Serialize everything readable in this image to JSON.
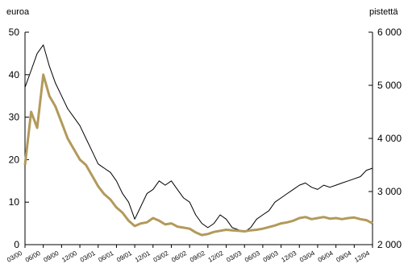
{
  "chart_data": {
    "type": "line",
    "left_axis_unit": "euroa",
    "right_axis_unit": "pistettä",
    "left_ylim": [
      0,
      50
    ],
    "right_ylim": [
      2000,
      6000
    ],
    "left_ticks": [
      0,
      10,
      20,
      30,
      40,
      50
    ],
    "right_ticks": [
      2000,
      3000,
      4000,
      5000,
      6000
    ],
    "right_tick_labels": [
      "2 000",
      "3 000",
      "4 000",
      "5 000",
      "6 000"
    ],
    "x_tick_labels": [
      "03/00",
      "06/00",
      "09/00",
      "12/00",
      "03/01",
      "06/01",
      "09/01",
      "12/01",
      "03/02",
      "06/02",
      "09/02",
      "12/02",
      "03/03",
      "06/03",
      "09/03",
      "12/03",
      "03/04",
      "06/04",
      "09/04",
      "12/04"
    ],
    "x_range": [
      "2000-03",
      "2004-12"
    ],
    "colors": {
      "black_series": "#000000",
      "gold_series": "#b29a5b",
      "axis": "#000000"
    },
    "series": [
      {
        "axis": "left",
        "color": "#000000",
        "unit": "euroa",
        "points": [
          [
            "2000-03",
            37
          ],
          [
            "2000-04",
            41
          ],
          [
            "2000-05",
            45
          ],
          [
            "2000-06",
            47
          ],
          [
            "2000-07",
            42
          ],
          [
            "2000-08",
            38
          ],
          [
            "2000-09",
            35
          ],
          [
            "2000-10",
            32
          ],
          [
            "2000-11",
            30
          ],
          [
            "2000-12",
            28
          ],
          [
            "2001-01",
            25
          ],
          [
            "2001-02",
            22
          ],
          [
            "2001-03",
            19
          ],
          [
            "2001-04",
            18
          ],
          [
            "2001-05",
            17
          ],
          [
            "2001-06",
            15
          ],
          [
            "2001-07",
            12
          ],
          [
            "2001-08",
            10
          ],
          [
            "2001-09",
            6
          ],
          [
            "2001-10",
            9
          ],
          [
            "2001-11",
            12
          ],
          [
            "2001-12",
            13
          ],
          [
            "2002-01",
            15
          ],
          [
            "2002-02",
            14
          ],
          [
            "2002-03",
            15
          ],
          [
            "2002-04",
            13
          ],
          [
            "2002-05",
            11
          ],
          [
            "2002-06",
            10
          ],
          [
            "2002-07",
            7
          ],
          [
            "2002-08",
            5
          ],
          [
            "2002-09",
            4
          ],
          [
            "2002-10",
            5
          ],
          [
            "2002-11",
            7
          ],
          [
            "2002-12",
            6
          ],
          [
            "2003-01",
            4
          ],
          [
            "2003-02",
            3.5
          ],
          [
            "2003-03",
            3
          ],
          [
            "2003-04",
            4
          ],
          [
            "2003-05",
            6
          ],
          [
            "2003-06",
            7
          ],
          [
            "2003-07",
            8
          ],
          [
            "2003-08",
            10
          ],
          [
            "2003-09",
            11
          ],
          [
            "2003-10",
            12
          ],
          [
            "2003-11",
            13
          ],
          [
            "2003-12",
            14
          ],
          [
            "2004-01",
            14.5
          ],
          [
            "2004-02",
            13.5
          ],
          [
            "2004-03",
            13
          ],
          [
            "2004-04",
            14
          ],
          [
            "2004-05",
            13.5
          ],
          [
            "2004-06",
            14
          ],
          [
            "2004-07",
            14.5
          ],
          [
            "2004-08",
            15
          ],
          [
            "2004-09",
            15.5
          ],
          [
            "2004-10",
            16
          ],
          [
            "2004-11",
            17.5
          ],
          [
            "2004-12",
            18
          ]
        ]
      },
      {
        "axis": "right",
        "color": "#b29a5b",
        "unit": "pistettä",
        "points": [
          [
            "2000-03",
            3500
          ],
          [
            "2000-04",
            4500
          ],
          [
            "2000-05",
            4200
          ],
          [
            "2000-06",
            5200
          ],
          [
            "2000-07",
            4800
          ],
          [
            "2000-08",
            4600
          ],
          [
            "2000-09",
            4300
          ],
          [
            "2000-10",
            4000
          ],
          [
            "2000-11",
            3800
          ],
          [
            "2000-12",
            3600
          ],
          [
            "2001-01",
            3500
          ],
          [
            "2001-02",
            3300
          ],
          [
            "2001-03",
            3100
          ],
          [
            "2001-04",
            2950
          ],
          [
            "2001-05",
            2850
          ],
          [
            "2001-06",
            2700
          ],
          [
            "2001-07",
            2600
          ],
          [
            "2001-08",
            2450
          ],
          [
            "2001-09",
            2350
          ],
          [
            "2001-10",
            2400
          ],
          [
            "2001-11",
            2420
          ],
          [
            "2001-12",
            2500
          ],
          [
            "2002-01",
            2450
          ],
          [
            "2002-02",
            2380
          ],
          [
            "2002-03",
            2400
          ],
          [
            "2002-04",
            2340
          ],
          [
            "2002-05",
            2320
          ],
          [
            "2002-06",
            2300
          ],
          [
            "2002-07",
            2230
          ],
          [
            "2002-08",
            2180
          ],
          [
            "2002-09",
            2200
          ],
          [
            "2002-10",
            2240
          ],
          [
            "2002-11",
            2260
          ],
          [
            "2002-12",
            2280
          ],
          [
            "2003-01",
            2270
          ],
          [
            "2003-02",
            2260
          ],
          [
            "2003-03",
            2250
          ],
          [
            "2003-04",
            2270
          ],
          [
            "2003-05",
            2280
          ],
          [
            "2003-06",
            2300
          ],
          [
            "2003-07",
            2330
          ],
          [
            "2003-08",
            2360
          ],
          [
            "2003-09",
            2400
          ],
          [
            "2003-10",
            2420
          ],
          [
            "2003-11",
            2450
          ],
          [
            "2003-12",
            2500
          ],
          [
            "2004-01",
            2520
          ],
          [
            "2004-02",
            2480
          ],
          [
            "2004-03",
            2500
          ],
          [
            "2004-04",
            2520
          ],
          [
            "2004-05",
            2490
          ],
          [
            "2004-06",
            2500
          ],
          [
            "2004-07",
            2480
          ],
          [
            "2004-08",
            2500
          ],
          [
            "2004-09",
            2510
          ],
          [
            "2004-10",
            2480
          ],
          [
            "2004-11",
            2460
          ],
          [
            "2004-12",
            2400
          ]
        ]
      }
    ]
  }
}
